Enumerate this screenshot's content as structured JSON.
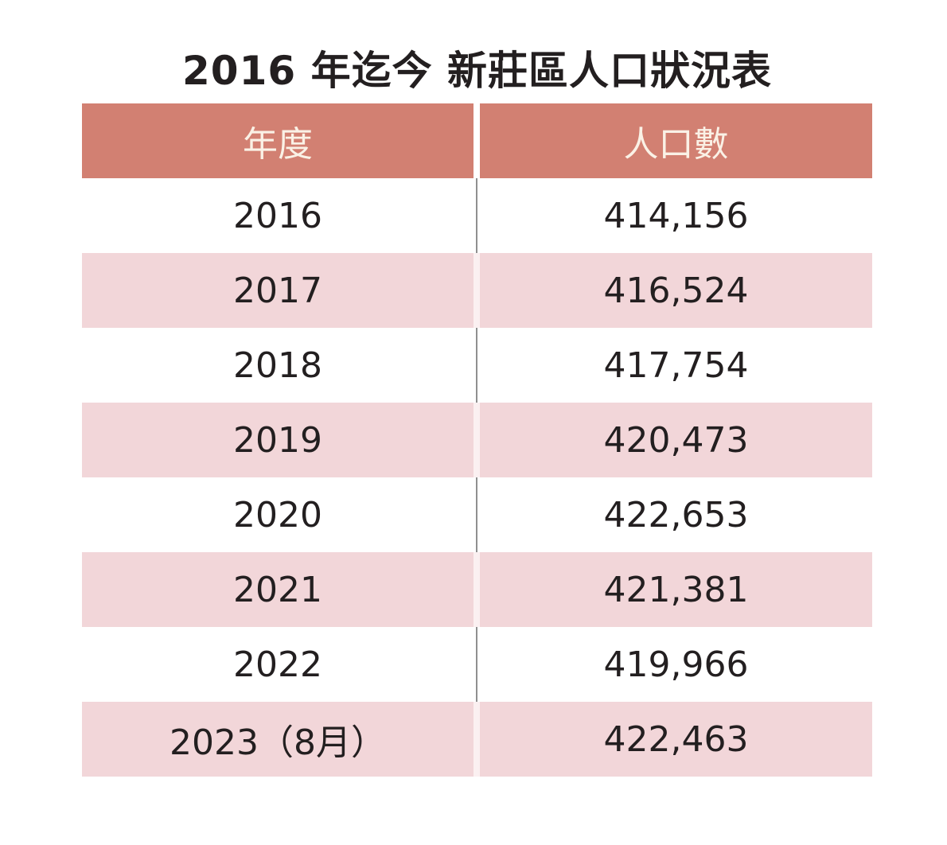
{
  "title": "2016 年迄今 新莊區人口狀況表",
  "table": {
    "columns": [
      {
        "label": "年度"
      },
      {
        "label": "人口數"
      }
    ],
    "rows": [
      {
        "year": "2016",
        "population": "414,156"
      },
      {
        "year": "2017",
        "population": "416,524"
      },
      {
        "year": "2018",
        "population": "417,754"
      },
      {
        "year": "2019",
        "population": "420,473"
      },
      {
        "year": "2020",
        "population": "422,653"
      },
      {
        "year": "2021",
        "population": "421,381"
      },
      {
        "year": "2022",
        "population": "419,966"
      },
      {
        "year": "2023（8月）",
        "population": "422,463"
      }
    ]
  },
  "chart_data": {
    "type": "table",
    "title": "2016 年迄今 新莊區人口狀況表",
    "columns": [
      "年度",
      "人口數"
    ],
    "categories": [
      "2016",
      "2017",
      "2018",
      "2019",
      "2020",
      "2021",
      "2022",
      "2023（8月）"
    ],
    "values": [
      414156,
      416524,
      417754,
      420473,
      422653,
      421381,
      419966,
      422463
    ]
  },
  "colors": {
    "header_bg": "#D28072",
    "header_text": "#FAF1E6",
    "alt_row_bg": "#F2D6D9",
    "alt_gutter": "#FBF0F1",
    "body_text": "#231F20",
    "divider": "#8F8F8F",
    "page_bg": "#FFFFFF"
  }
}
